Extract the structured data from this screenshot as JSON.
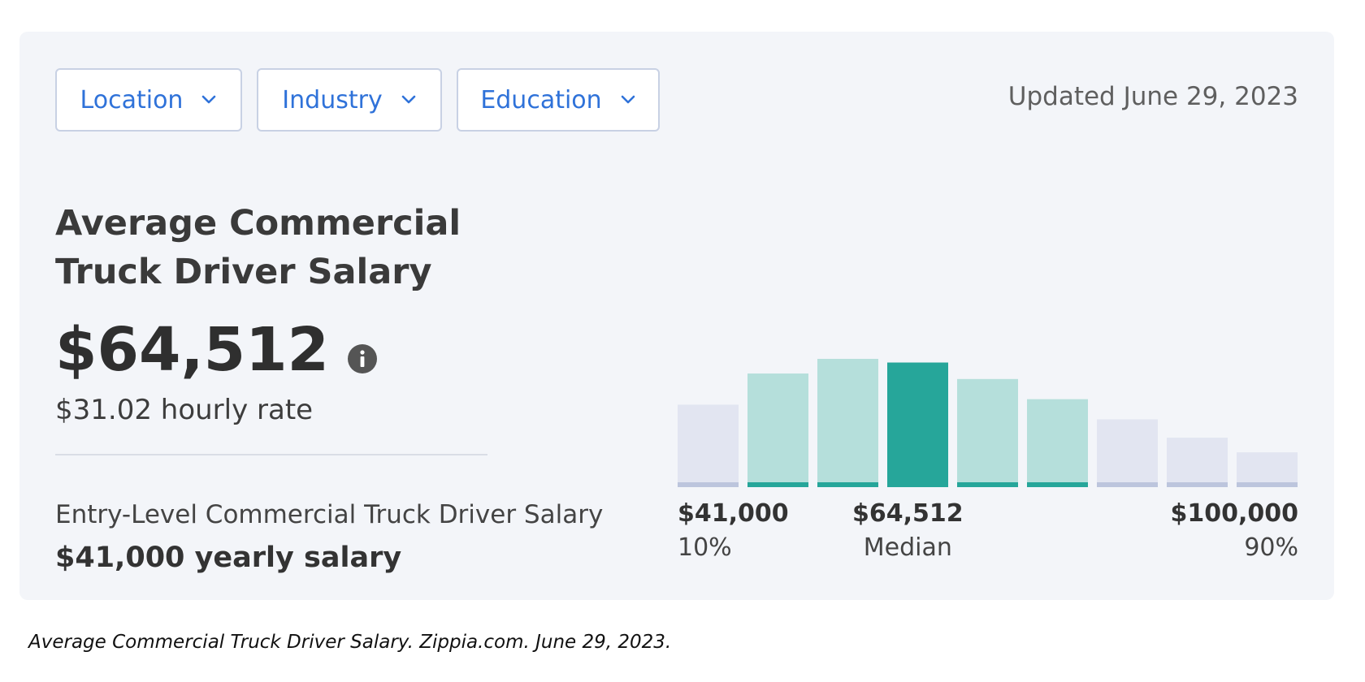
{
  "filters": {
    "location_label": "Location",
    "industry_label": "Industry",
    "education_label": "Education"
  },
  "updated_text": "Updated June 29, 2023",
  "title": "Average Commercial Truck Driver Salary",
  "salary": {
    "amount": "$64,512",
    "hourly": "$31.02 hourly rate",
    "entry_label": "Entry-Level Commercial Truck Driver Salary",
    "entry_value": "$41,000 yearly salary"
  },
  "icons": {
    "info": "info-icon",
    "chevron": "chevron-down-icon"
  },
  "colors": {
    "accent_blue": "#2f72d9",
    "bar_light_gray": "#e2e5f1",
    "bar_gray_base": "#bcc5dd",
    "bar_light_teal": "#b5dfdb",
    "bar_teal_base": "#26a69a",
    "bar_median": "#26a69a"
  },
  "chart_data": {
    "type": "bar",
    "values": [
      9.0,
      12.4,
      14.0,
      13.6,
      11.8,
      9.6,
      7.4,
      5.4,
      3.8
    ],
    "highlight": [
      false,
      true,
      true,
      true,
      true,
      true,
      false,
      false,
      false
    ],
    "median_index": 3,
    "labels": {
      "low_value": "$41,000",
      "low_label": "10%",
      "median_value": "$64,512",
      "median_label": "Median",
      "high_value": "$100,000",
      "high_label": "90%"
    }
  },
  "caption": "Average Commercial Truck Driver Salary. Zippia.com. June 29, 2023."
}
